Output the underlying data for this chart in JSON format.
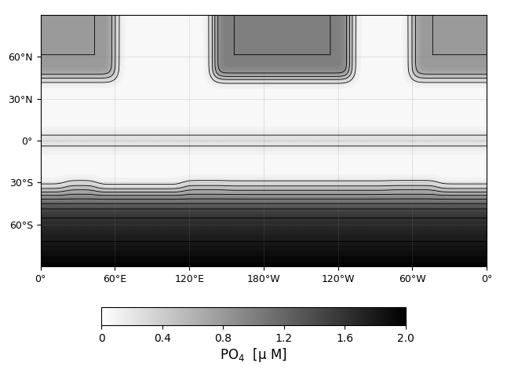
{
  "title": "",
  "xlabel": "PO$_4$ [μ M]",
  "colorbar_ticks": [
    0,
    0.4,
    0.8,
    1.2,
    1.6,
    2.0
  ],
  "colorbar_label": "PO$_4$  [μ M]",
  "vmin": 0.0,
  "vmax": 2.0,
  "contour_levels": [
    0.2,
    0.4,
    0.6,
    0.8,
    1.0,
    1.2,
    1.4,
    1.6,
    1.8
  ],
  "xlim": [
    0,
    360
  ],
  "ylim": [
    -90,
    90
  ],
  "yticks": [
    -60,
    -30,
    0,
    30,
    60
  ],
  "xticks": [
    0,
    60,
    120,
    180,
    240,
    300,
    360
  ],
  "xtick_labels": [
    "0°",
    "60°E",
    "120°E",
    "180°W",
    "120°W",
    "60°W",
    "0°"
  ],
  "ytick_labels": [
    "60°S",
    "30°S",
    "0°",
    "30°N",
    "60°N"
  ],
  "cmap": "gray_r",
  "dotted_grid": true,
  "fig_width": 6.46,
  "fig_height": 4.71
}
